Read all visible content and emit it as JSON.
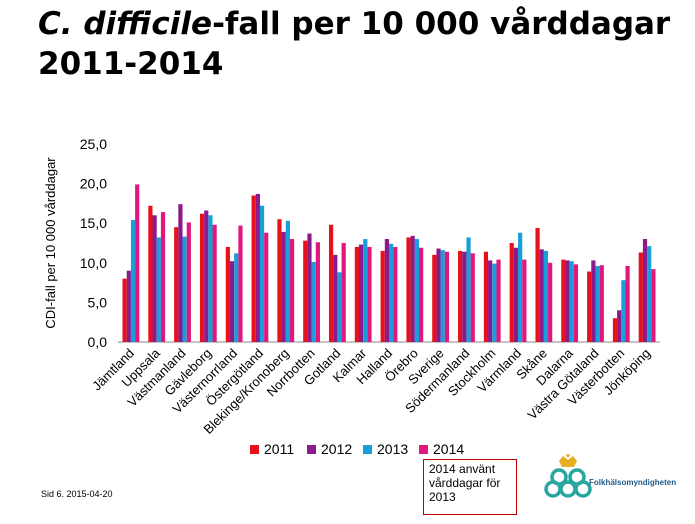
{
  "title": {
    "italic_part": "C. difficile",
    "rest_line1": "-fall per 10 000 vårddagar",
    "line2": "2011-2014"
  },
  "footer": {
    "text": "Sid   6. 2015-04-20"
  },
  "note": {
    "text": "2014 använt vårddagar för 2013"
  },
  "logo": {
    "text": "Folkhälsomyndigheten",
    "icon": "folkhalsomyndigheten-logo"
  },
  "legend": [
    "2011",
    "2012",
    "2013",
    "2014"
  ],
  "chart_data": {
    "type": "bar",
    "ylabel": "CDI-fall per 10 000 vårddagar",
    "ylim": [
      0,
      25
    ],
    "yticks": [
      "0,0",
      "5,0",
      "10,0",
      "15,0",
      "20,0",
      "25,0"
    ],
    "ytick_values": [
      0,
      5,
      10,
      15,
      20,
      25
    ],
    "grid": false,
    "legend_position": "bottom",
    "colors": [
      "#e8101a",
      "#8b1a8a",
      "#1a9ed9",
      "#e0187e"
    ],
    "categories": [
      "Jämtland",
      "Uppsala",
      "Västmanland",
      "Gävleborg",
      "Västernorrland",
      "Östergötland",
      "Blekinge/Kronoberg",
      "Norrbotten",
      "Gotland",
      "Kalmar",
      "Halland",
      "Örebro",
      "Sverige",
      "Södermanland",
      "Stockholm",
      "Värmland",
      "Skåne",
      "Dalarna",
      "Västra Götaland",
      "Västerbotten",
      "Jönköping"
    ],
    "series": [
      {
        "name": "2011",
        "values": [
          8.0,
          17.2,
          14.5,
          16.2,
          12.0,
          18.5,
          15.5,
          12.8,
          14.8,
          12.0,
          11.5,
          13.2,
          11.0,
          11.5,
          11.4,
          12.5,
          14.4,
          10.4,
          8.9,
          3.0,
          11.3
        ]
      },
      {
        "name": "2012",
        "values": [
          9.0,
          16.0,
          17.4,
          16.6,
          10.2,
          18.7,
          13.9,
          13.7,
          11.0,
          12.3,
          13.0,
          13.4,
          11.8,
          11.4,
          10.3,
          11.9,
          11.7,
          10.3,
          10.3,
          4.0,
          13.0
        ]
      },
      {
        "name": "2013",
        "values": [
          15.4,
          13.2,
          13.3,
          16.0,
          11.2,
          17.2,
          15.3,
          10.1,
          8.8,
          13.0,
          12.4,
          13.0,
          11.6,
          13.2,
          9.9,
          13.8,
          11.5,
          10.2,
          9.6,
          7.8,
          12.1
        ]
      },
      {
        "name": "2014",
        "values": [
          19.9,
          16.4,
          15.1,
          14.8,
          14.7,
          13.8,
          13.0,
          12.6,
          12.5,
          12.0,
          12.0,
          11.9,
          11.4,
          11.2,
          10.4,
          10.4,
          10.0,
          9.8,
          9.7,
          9.6,
          9.2
        ]
      }
    ]
  }
}
